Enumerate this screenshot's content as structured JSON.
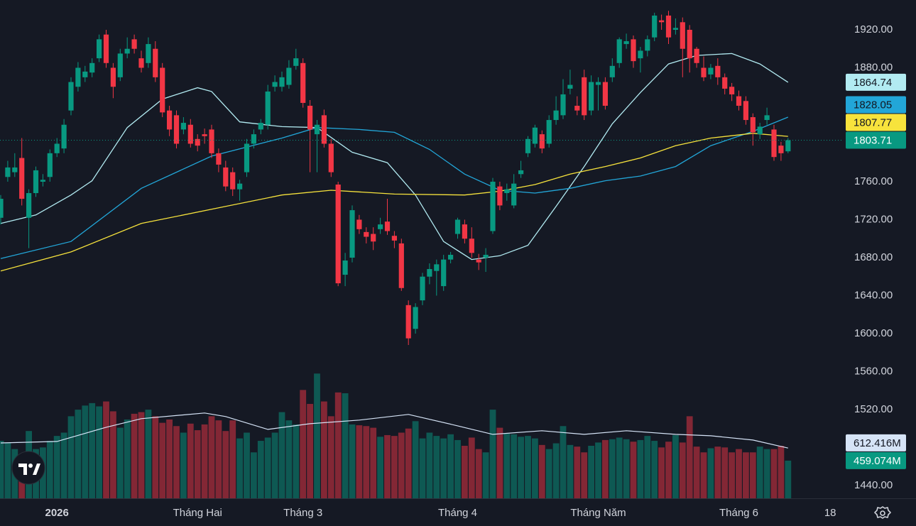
{
  "chart_data": {
    "type": "candlestick",
    "categories": [
      null,
      null,
      null,
      null,
      null,
      null,
      null,
      null,
      "2026",
      null,
      null,
      null,
      null,
      null,
      null,
      null,
      null,
      null,
      null,
      null,
      null,
      null,
      null,
      null,
      null,
      null,
      null,
      null,
      "Tháng Hai",
      null,
      null,
      null,
      null,
      null,
      null,
      null,
      null,
      null,
      null,
      null,
      null,
      null,
      null,
      "Tháng 3",
      null,
      null,
      null,
      null,
      null,
      null,
      null,
      null,
      null,
      null,
      null,
      null,
      null,
      null,
      null,
      null,
      null,
      null,
      null,
      null,
      null,
      "Tháng 4",
      null,
      null,
      null,
      null,
      null,
      null,
      null,
      null,
      null,
      null,
      null,
      null,
      null,
      null,
      null,
      null,
      null,
      null,
      null,
      "Tháng Năm",
      null,
      null,
      null,
      null,
      null,
      null,
      null,
      null,
      null,
      null,
      null,
      null,
      null,
      null,
      null,
      null,
      null,
      null,
      null,
      "Tháng 6",
      null,
      null,
      null,
      null,
      null,
      null,
      null,
      null,
      null,
      null,
      null,
      null,
      "18"
    ],
    "ohlc": [
      [
        1722,
        1746,
        1715,
        1742
      ],
      [
        1765,
        1782,
        1760,
        1775
      ],
      [
        1770,
        1790,
        1765,
        1775
      ],
      [
        1785,
        1806,
        1735,
        1742
      ],
      [
        1722,
        1752,
        1690,
        1748
      ],
      [
        1748,
        1776,
        1744,
        1772
      ],
      [
        1760,
        1768,
        1755,
        1762
      ],
      [
        1765,
        1794,
        1760,
        1790
      ],
      [
        1790,
        1806,
        1786,
        1800
      ],
      [
        1795,
        1826,
        1790,
        1820
      ],
      [
        1835,
        1870,
        1830,
        1865
      ],
      [
        1860,
        1886,
        1855,
        1880
      ],
      [
        1870,
        1882,
        1865,
        1876
      ],
      [
        1875,
        1890,
        1870,
        1885
      ],
      [
        1890,
        1915,
        1886,
        1910
      ],
      [
        1915,
        1920,
        1880,
        1885
      ],
      [
        1880,
        1885,
        1848,
        1860
      ],
      [
        1870,
        1900,
        1866,
        1895
      ],
      [
        1895,
        1912,
        1890,
        1900
      ],
      [
        1910,
        1915,
        1895,
        1900
      ],
      [
        1890,
        1898,
        1875,
        1880
      ],
      [
        1885,
        1912,
        1880,
        1905
      ],
      [
        1900,
        1908,
        1865,
        1870
      ],
      [
        1880,
        1885,
        1828,
        1833
      ],
      [
        1835,
        1840,
        1808,
        1815
      ],
      [
        1830,
        1835,
        1795,
        1800
      ],
      [
        1815,
        1828,
        1810,
        1822
      ],
      [
        1820,
        1826,
        1796,
        1800
      ],
      [
        1805,
        1810,
        1792,
        1798
      ],
      [
        1810,
        1816,
        1800,
        1808
      ],
      [
        1815,
        1820,
        1785,
        1790
      ],
      [
        1790,
        1795,
        1770,
        1778
      ],
      [
        1775,
        1782,
        1750,
        1755
      ],
      [
        1770,
        1775,
        1745,
        1752
      ],
      [
        1752,
        1762,
        1740,
        1758
      ],
      [
        1770,
        1805,
        1765,
        1800
      ],
      [
        1800,
        1815,
        1795,
        1810
      ],
      [
        1815,
        1826,
        1810,
        1822
      ],
      [
        1820,
        1862,
        1815,
        1855
      ],
      [
        1860,
        1872,
        1855,
        1865
      ],
      [
        1860,
        1876,
        1855,
        1870
      ],
      [
        1862,
        1888,
        1858,
        1880
      ],
      [
        1882,
        1900,
        1878,
        1890
      ],
      [
        1885,
        1890,
        1838,
        1843
      ],
      [
        1840,
        1846,
        1770,
        1815
      ],
      [
        1810,
        1825,
        1770,
        1820
      ],
      [
        1830,
        1836,
        1796,
        1800
      ],
      [
        1800,
        1805,
        1765,
        1770
      ],
      [
        1757,
        1760,
        1650,
        1653
      ],
      [
        1662,
        1685,
        1650,
        1677
      ],
      [
        1680,
        1735,
        1675,
        1730
      ],
      [
        1720,
        1725,
        1705,
        1710
      ],
      [
        1707,
        1712,
        1695,
        1702
      ],
      [
        1705,
        1712,
        1688,
        1697
      ],
      [
        1710,
        1722,
        1705,
        1715
      ],
      [
        1718,
        1742,
        1704,
        1708
      ],
      [
        1703,
        1708,
        1690,
        1698
      ],
      [
        1695,
        1700,
        1645,
        1648
      ],
      [
        1630,
        1635,
        1588,
        1595
      ],
      [
        1605,
        1632,
        1600,
        1628
      ],
      [
        1635,
        1664,
        1630,
        1660
      ],
      [
        1660,
        1674,
        1652,
        1668
      ],
      [
        1666,
        1678,
        1640,
        1673
      ],
      [
        1650,
        1683,
        1645,
        1678
      ],
      [
        1678,
        1686,
        1674,
        1683
      ],
      [
        1705,
        1722,
        1700,
        1720
      ],
      [
        1715,
        1720,
        1695,
        1700
      ],
      [
        1700,
        1712,
        1680,
        1685
      ],
      [
        1678,
        1684,
        1667,
        1675
      ],
      [
        1680,
        1690,
        1665,
        1683
      ],
      [
        1708,
        1764,
        1705,
        1760
      ],
      [
        1755,
        1760,
        1730,
        1735
      ],
      [
        1748,
        1758,
        1740,
        1752
      ],
      [
        1735,
        1768,
        1732,
        1758
      ],
      [
        1768,
        1782,
        1764,
        1772
      ],
      [
        1790,
        1808,
        1786,
        1805
      ],
      [
        1800,
        1820,
        1796,
        1817
      ],
      [
        1810,
        1814,
        1790,
        1795
      ],
      [
        1800,
        1830,
        1796,
        1825
      ],
      [
        1825,
        1850,
        1820,
        1835
      ],
      [
        1830,
        1868,
        1826,
        1852
      ],
      [
        1858,
        1878,
        1852,
        1862
      ],
      [
        1840,
        1850,
        1830,
        1835
      ],
      [
        1870,
        1878,
        1825,
        1830
      ],
      [
        1835,
        1872,
        1830,
        1865
      ],
      [
        1862,
        1870,
        1835,
        1865
      ],
      [
        1865,
        1870,
        1836,
        1840
      ],
      [
        1870,
        1890,
        1865,
        1882
      ],
      [
        1885,
        1912,
        1880,
        1910
      ],
      [
        1905,
        1916,
        1900,
        1908
      ],
      [
        1910,
        1914,
        1880,
        1887
      ],
      [
        1890,
        1902,
        1875,
        1898
      ],
      [
        1898,
        1914,
        1892,
        1910
      ],
      [
        1912,
        1938,
        1908,
        1935
      ],
      [
        1930,
        1936,
        1920,
        1928
      ],
      [
        1935,
        1940,
        1905,
        1912
      ],
      [
        1920,
        1932,
        1915,
        1922
      ],
      [
        1928,
        1933,
        1870,
        1900
      ],
      [
        1920,
        1925,
        1875,
        1890
      ],
      [
        1900,
        1902,
        1880,
        1885
      ],
      [
        1880,
        1892,
        1866,
        1870
      ],
      [
        1873,
        1884,
        1868,
        1880
      ],
      [
        1882,
        1890,
        1862,
        1870
      ],
      [
        1870,
        1874,
        1852,
        1858
      ],
      [
        1860,
        1864,
        1845,
        1852
      ],
      [
        1850,
        1856,
        1835,
        1840
      ],
      [
        1845,
        1850,
        1820,
        1825
      ],
      [
        1828,
        1832,
        1798,
        1812
      ],
      [
        1810,
        1822,
        1805,
        1818
      ],
      [
        1825,
        1838,
        1820,
        1830
      ],
      [
        1815,
        1820,
        1782,
        1786
      ],
      [
        1798,
        1802,
        1782,
        1790
      ],
      [
        1792,
        1806,
        1790,
        1803.71
      ],
      null,
      null,
      null,
      null,
      null,
      null
    ],
    "up_color": "#089981",
    "down_color": "#f23645",
    "last_price_line": true,
    "ylim": [
      1426.5,
      1951.4
    ],
    "yticks": [
      {
        "value": 1920,
        "label": "1920.00"
      },
      {
        "value": 1880,
        "label": "1880.00"
      },
      {
        "value": 1760,
        "label": "1760.00"
      },
      {
        "value": 1720,
        "label": "1720.00"
      },
      {
        "value": 1680,
        "label": "1680.00"
      },
      {
        "value": 1640,
        "label": "1640.00"
      },
      {
        "value": 1600,
        "label": "1600.00"
      },
      {
        "value": 1560,
        "label": "1560.00"
      },
      {
        "value": 1520,
        "label": "1520.00"
      },
      {
        "value": 1440,
        "label": "1440.00"
      }
    ],
    "moving_averages": [
      {
        "color": "#b2ebf2",
        "badge_text_color": "#131722",
        "x": [
          0,
          5,
          10,
          13,
          18,
          23,
          28,
          30,
          34,
          40,
          45,
          50,
          55,
          59,
          63,
          67,
          71,
          75,
          79,
          83,
          87,
          91,
          95,
          99,
          104,
          108,
          112
        ],
        "values": [
          1716,
          1725,
          1746,
          1761,
          1817,
          1847,
          1859,
          1855,
          1823,
          1818,
          1817,
          1791,
          1780,
          1746,
          1697,
          1678,
          1682,
          1693,
          1734,
          1776,
          1821,
          1854,
          1884,
          1893,
          1895,
          1884,
          1864.74
        ]
      },
      {
        "color": "#22a6d8",
        "badge_text_color": "#131722",
        "x": [
          0,
          10,
          20,
          30,
          40,
          45,
          51,
          56,
          61,
          66,
          71,
          76,
          81,
          86,
          91,
          96,
          101,
          107,
          112
        ],
        "values": [
          1679,
          1697,
          1753,
          1787,
          1806,
          1817,
          1815,
          1812,
          1794,
          1768,
          1751,
          1748,
          1753,
          1761,
          1766,
          1776,
          1798,
          1813,
          1828.05
        ]
      },
      {
        "color": "#f7e33c",
        "badge_text_color": "#131722",
        "x": [
          0,
          10,
          20,
          30,
          40,
          47,
          56,
          66,
          71,
          76,
          81,
          86,
          91,
          96,
          101,
          107,
          112
        ],
        "values": [
          1666,
          1686,
          1716,
          1731,
          1746,
          1751,
          1747,
          1746,
          1750,
          1757,
          1768,
          1776,
          1785,
          1798,
          1806,
          1811,
          1807.77
        ]
      }
    ],
    "volume": {
      "ylim": [
        0,
        1600
      ],
      "values": [
        700,
        680,
        600,
        530,
        820,
        600,
        620,
        700,
        760,
        800,
        1000,
        1080,
        1130,
        1160,
        1120,
        1180,
        1060,
        860,
        960,
        1030,
        1050,
        1080,
        1000,
        920,
        960,
        880,
        800,
        910,
        830,
        900,
        1000,
        950,
        820,
        950,
        730,
        800,
        560,
        700,
        740,
        800,
        1050,
        950,
        900,
        1320,
        1150,
        1520,
        1180,
        1000,
        1290,
        1280,
        900,
        890,
        880,
        860,
        750,
        770,
        760,
        800,
        850,
        940,
        730,
        800,
        760,
        730,
        780,
        710,
        640,
        740,
        600,
        560,
        1080,
        860,
        790,
        780,
        750,
        760,
        730,
        650,
        600,
        670,
        880,
        650,
        630,
        560,
        640,
        680,
        710,
        720,
        740,
        720,
        690,
        710,
        760,
        700,
        620,
        690,
        770,
        680,
        1000,
        630,
        560,
        610,
        630,
        620,
        560,
        600,
        560,
        560,
        630,
        600,
        600,
        640,
        459.074,
        null,
        null,
        null,
        null,
        null,
        null
      ],
      "value_labels": [
        null,
        null,
        null,
        null,
        null,
        null,
        null,
        null,
        null,
        null,
        null,
        null,
        null,
        null,
        null,
        null,
        null,
        null,
        null,
        null,
        null,
        null,
        null,
        null,
        null,
        null,
        null,
        null,
        null,
        null,
        null,
        null,
        null,
        null,
        null,
        null,
        null,
        null,
        null,
        null,
        null,
        null,
        null,
        null,
        null,
        null,
        null,
        null,
        null,
        null,
        null,
        null,
        null,
        null,
        null,
        null,
        null,
        null,
        null,
        null,
        null,
        null,
        null,
        null,
        null,
        null,
        null,
        null,
        null,
        null,
        null,
        null,
        null,
        null,
        null,
        null,
        null,
        null,
        null,
        null,
        null,
        null,
        null,
        null,
        null,
        null,
        null,
        null,
        null,
        null,
        null,
        null,
        null,
        null,
        null,
        null,
        null,
        null,
        null,
        null,
        null,
        null,
        null,
        null,
        null,
        null,
        null,
        null,
        null,
        null,
        null,
        null,
        "459.074M",
        null,
        null,
        null,
        null,
        null,
        null
      ],
      "ma": {
        "color": "#d6e4f7",
        "badge_text_color": "#131722",
        "x": [
          0,
          8,
          15,
          20,
          29,
          32,
          38,
          44,
          51,
          58,
          65,
          70,
          77,
          83,
          89,
          96,
          101,
          107,
          112
        ],
        "values": [
          675,
          693,
          866,
          970,
          1040,
          996,
          840,
          909,
          953,
          1022,
          883,
          779,
          823,
          779,
          823,
          779,
          762,
          710,
          612.416
        ],
        "value_labels": [
          null,
          null,
          null,
          null,
          null,
          null,
          null,
          null,
          null,
          null,
          null,
          null,
          null,
          null,
          null,
          null,
          null,
          null,
          "612.416M"
        ]
      }
    }
  }
}
